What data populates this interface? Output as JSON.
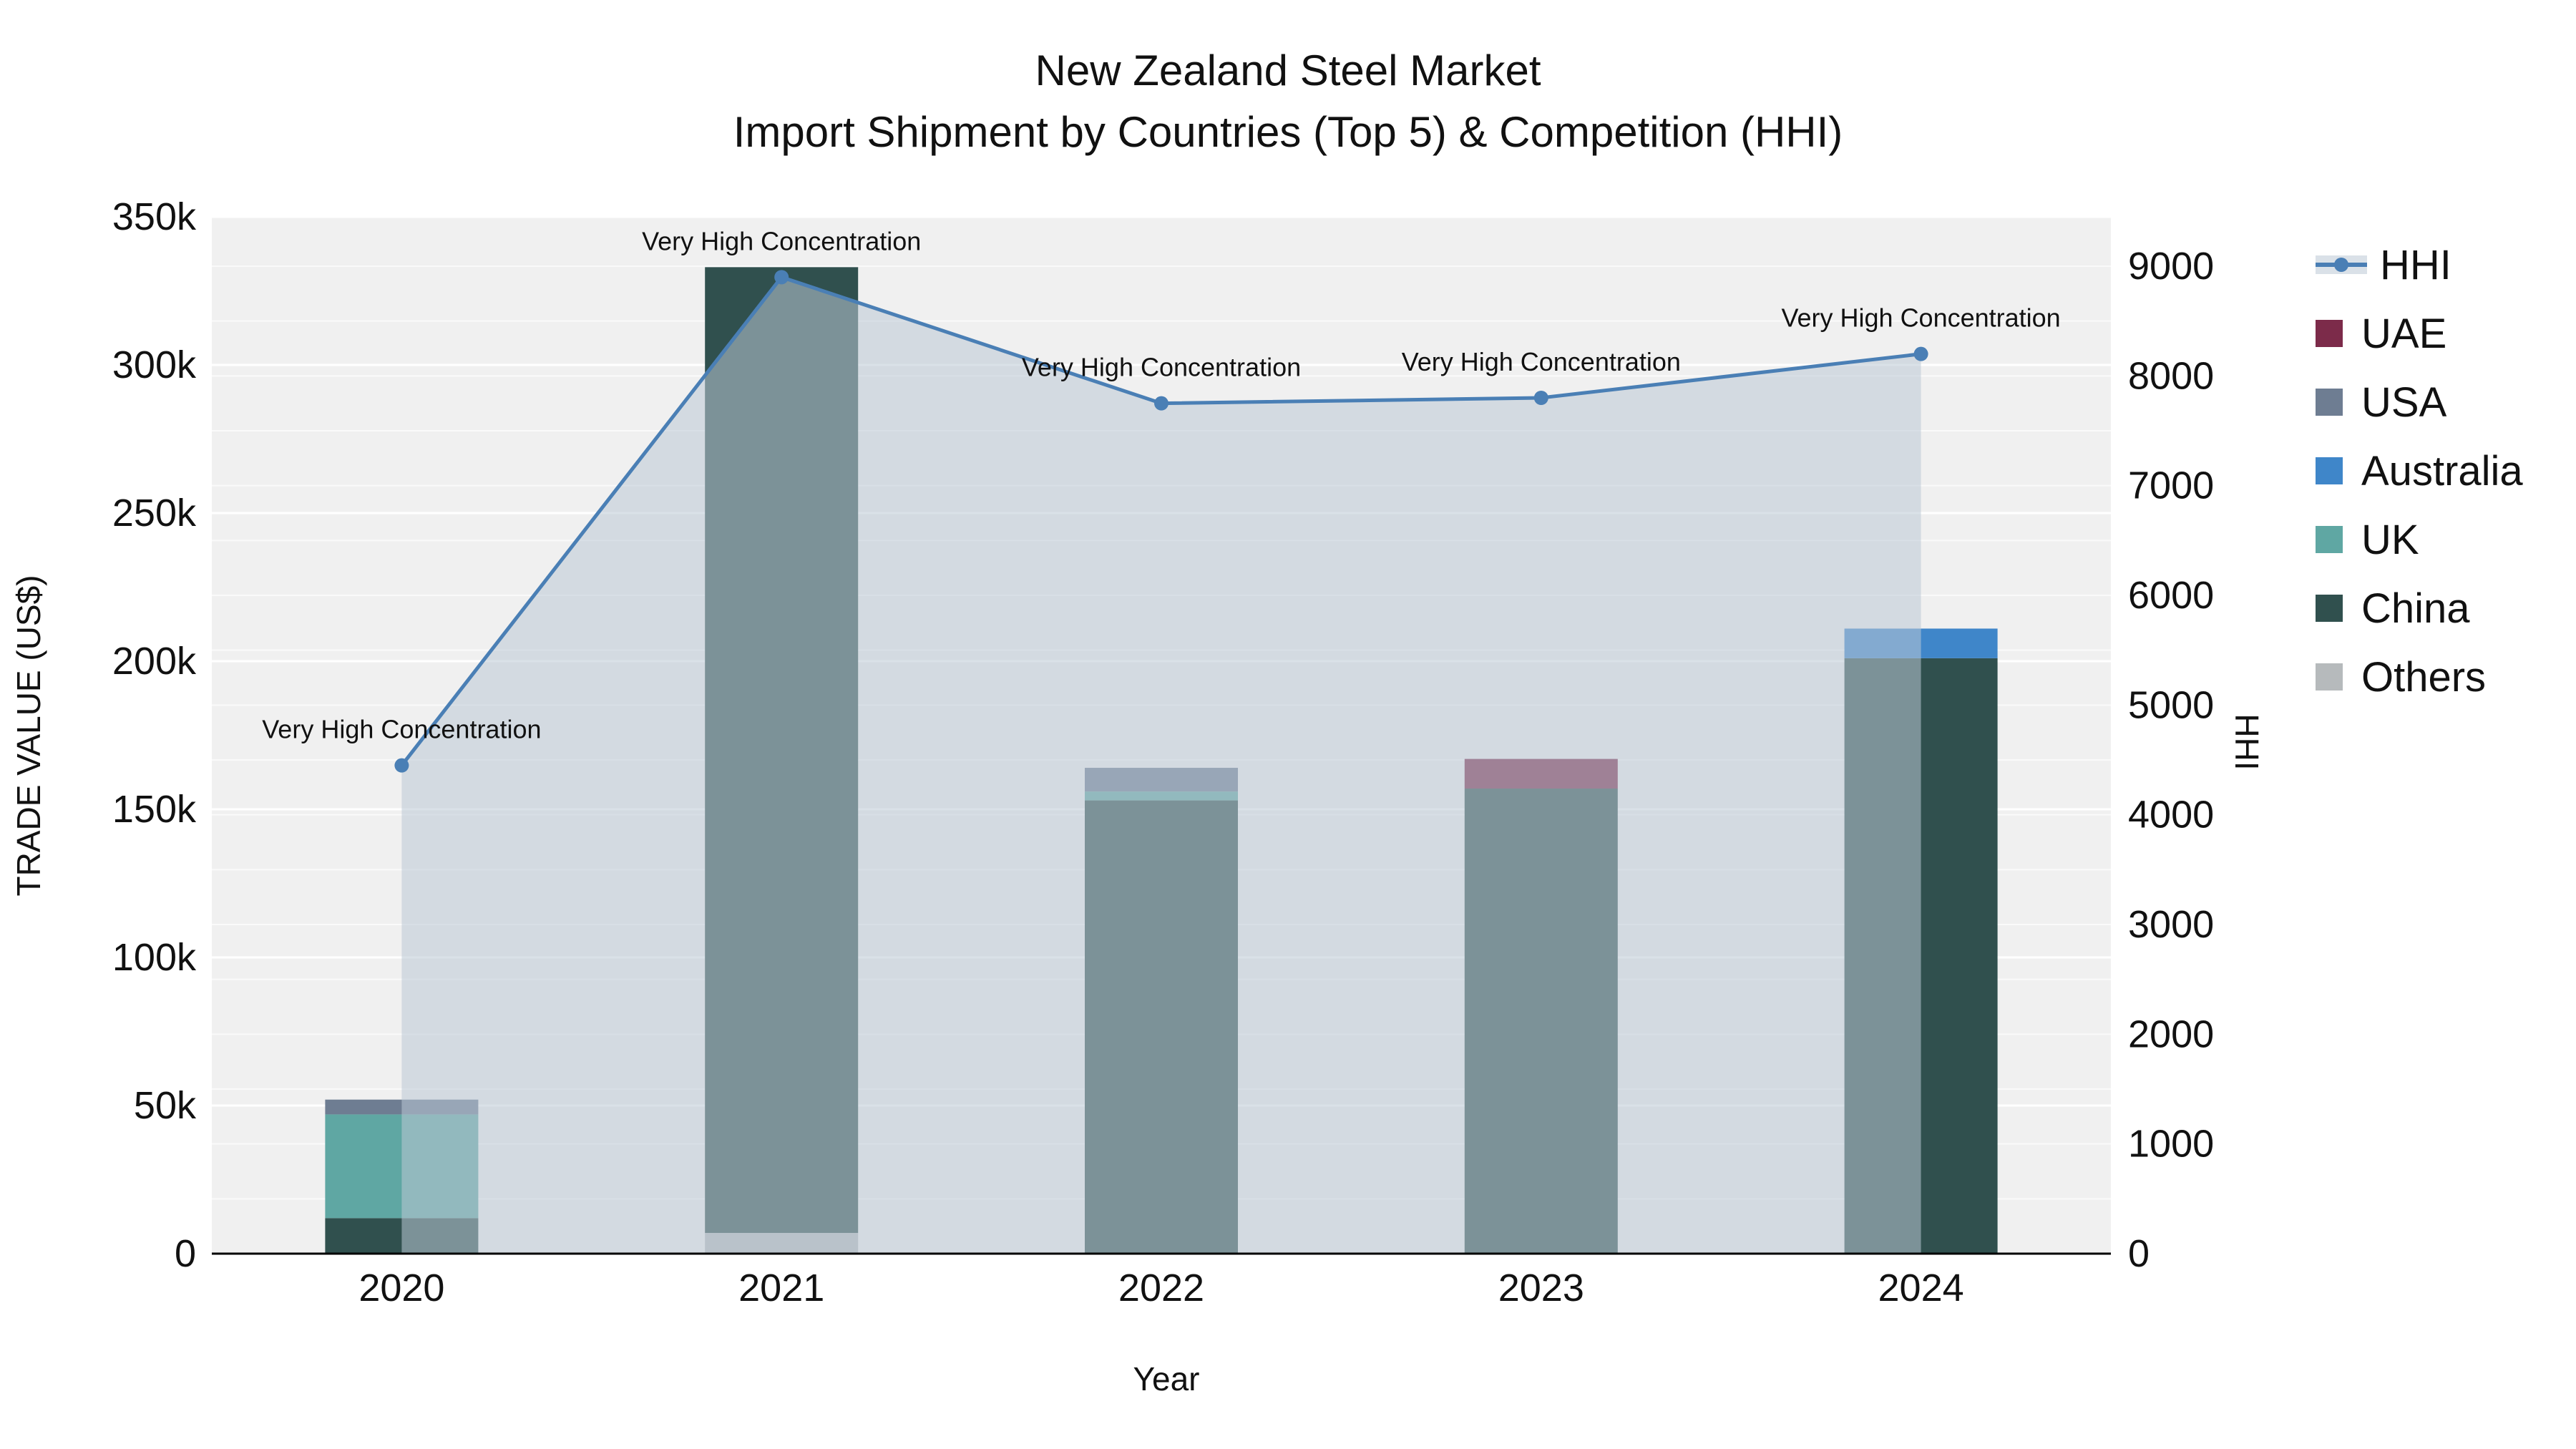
{
  "title": {
    "line1": "New Zealand Steel Market",
    "line2": "Import Shipment by Countries (Top 5) & Competition (HHI)"
  },
  "axes": {
    "x_title": "Year",
    "y_left_title": "TRADE VALUE (US$)",
    "y_right_title": "HHI"
  },
  "legend": {
    "items": [
      {
        "label": "HHI",
        "type": "line",
        "color": "#4a7fb5"
      },
      {
        "label": "UAE",
        "type": "square",
        "color": "#7c2b4a"
      },
      {
        "label": "USA",
        "type": "square",
        "color": "#6e7d92"
      },
      {
        "label": "Australia",
        "type": "square",
        "color": "#3f86c9"
      },
      {
        "label": "UK",
        "type": "square",
        "color": "#5fa7a3"
      },
      {
        "label": "China",
        "type": "square",
        "color": "#30504e"
      },
      {
        "label": "Others",
        "type": "square",
        "color": "#b6babc"
      }
    ]
  },
  "chart_data": {
    "type": "combo",
    "bar_type": "stacked",
    "title": "New Zealand Steel Market — Import Shipment by Countries (Top 5) & Competition (HHI)",
    "categories": [
      "2020",
      "2021",
      "2022",
      "2023",
      "2024"
    ],
    "bar_series": [
      {
        "name": "Others",
        "values": [
          0,
          7000,
          0,
          0,
          0
        ],
        "color": "#b6babc"
      },
      {
        "name": "China",
        "values": [
          12000,
          326000,
          153000,
          157000,
          201000
        ],
        "color": "#30504e"
      },
      {
        "name": "UK",
        "values": [
          35000,
          0,
          3000,
          0,
          0
        ],
        "color": "#5fa7a3"
      },
      {
        "name": "Australia",
        "values": [
          0,
          0,
          0,
          0,
          10000
        ],
        "color": "#3f86c9"
      },
      {
        "name": "USA",
        "values": [
          5000,
          0,
          8000,
          0,
          0
        ],
        "color": "#6e7d92"
      },
      {
        "name": "UAE",
        "values": [
          0,
          0,
          0,
          10000,
          0
        ],
        "color": "#7c2b4a"
      }
    ],
    "line_series": {
      "name": "HHI",
      "axis": "right",
      "values": [
        4450,
        8900,
        7750,
        7800,
        8200
      ],
      "color": "#4a7fb5",
      "area_fill": "rgba(188,200,213,0.55)"
    },
    "annotations": [
      {
        "x": "2020",
        "text": "Very High Concentration"
      },
      {
        "x": "2021",
        "text": "Very High Concentration"
      },
      {
        "x": "2022",
        "text": "Very High Concentration"
      },
      {
        "x": "2023",
        "text": "Very High Concentration"
      },
      {
        "x": "2024",
        "text": "Very High Concentration"
      }
    ],
    "xlabel": "Year",
    "y_left": {
      "title": "TRADE VALUE (US$)",
      "range": [
        0,
        350000
      ],
      "ticks": [
        {
          "v": 0,
          "label": "0"
        },
        {
          "v": 50000,
          "label": "50k"
        },
        {
          "v": 100000,
          "label": "100k"
        },
        {
          "v": 150000,
          "label": "150k"
        },
        {
          "v": 200000,
          "label": "200k"
        },
        {
          "v": 250000,
          "label": "250k"
        },
        {
          "v": 300000,
          "label": "300k"
        },
        {
          "v": 350000,
          "label": "350k"
        }
      ]
    },
    "y_right": {
      "title": "HHI",
      "range": [
        0,
        9450
      ],
      "ticks": [
        {
          "v": 0,
          "label": "0"
        },
        {
          "v": 1000,
          "label": "1000"
        },
        {
          "v": 2000,
          "label": "2000"
        },
        {
          "v": 3000,
          "label": "3000"
        },
        {
          "v": 4000,
          "label": "4000"
        },
        {
          "v": 5000,
          "label": "5000"
        },
        {
          "v": 6000,
          "label": "6000"
        },
        {
          "v": 7000,
          "label": "7000"
        },
        {
          "v": 8000,
          "label": "8000"
        },
        {
          "v": 9000,
          "label": "9000"
        }
      ]
    },
    "grid": true,
    "legend_position": "right",
    "plot_bg": "#f0f0f0"
  }
}
